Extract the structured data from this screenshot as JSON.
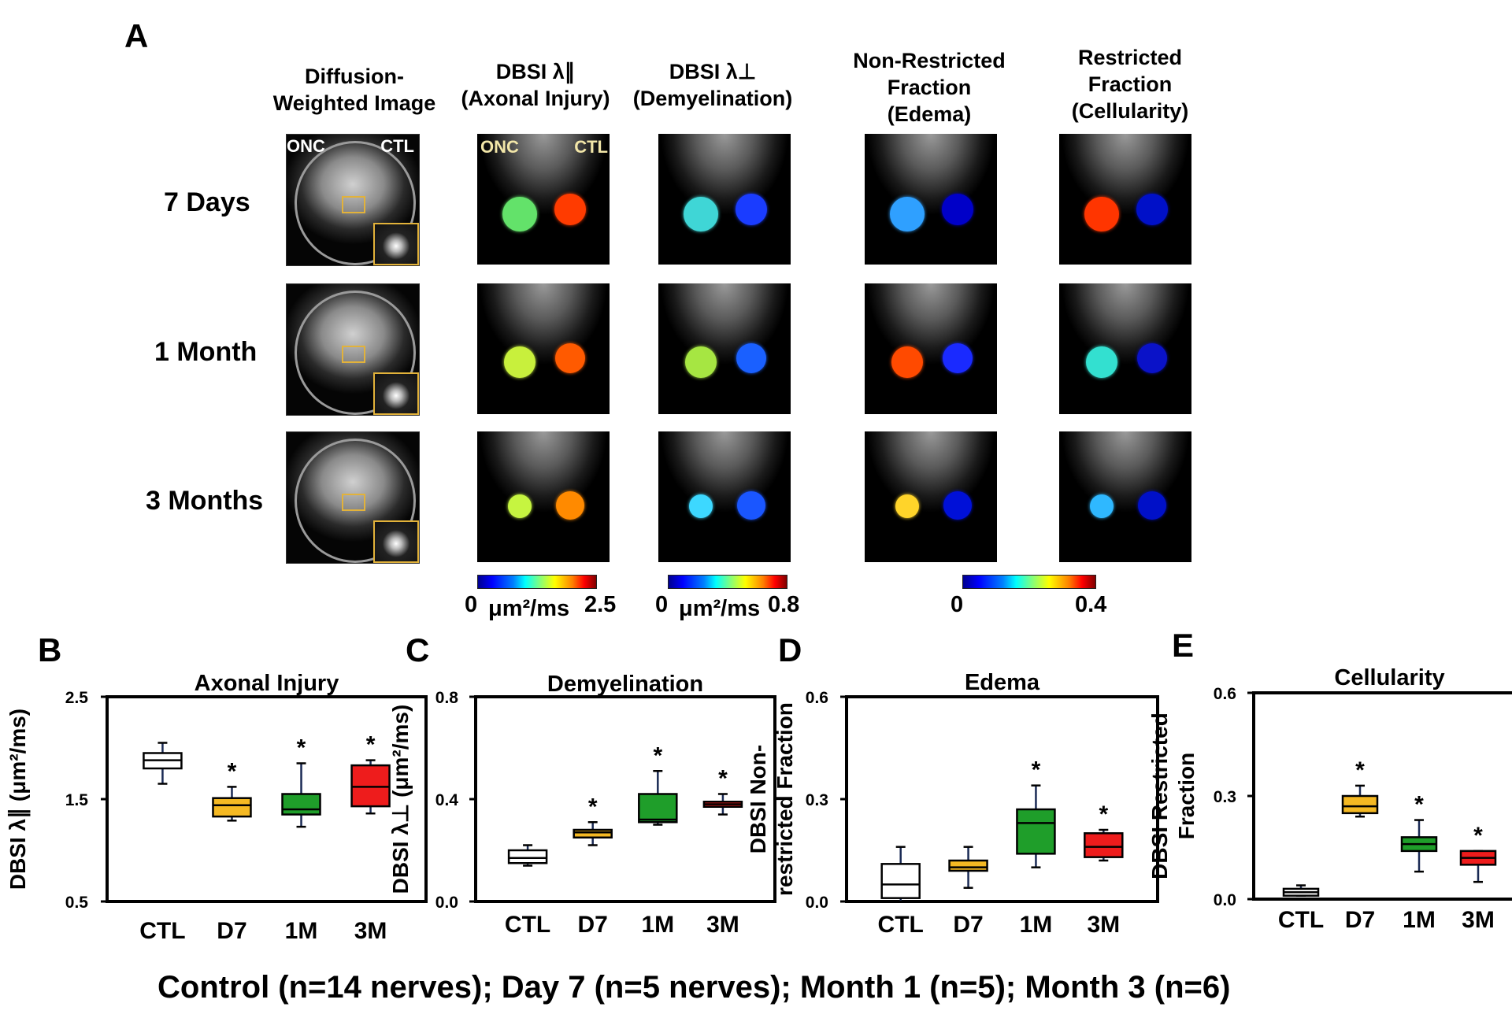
{
  "panel_a": {
    "letter": "A",
    "columns": [
      {
        "line1": "Diffusion-",
        "line2": "Weighted Image"
      },
      {
        "line1": "DBSI λ∥",
        "line2": "(Axonal Injury)"
      },
      {
        "line1": "DBSI λ⊥",
        "line2": "(Demyelination)"
      },
      {
        "line1": "Non-Restricted",
        "line2": "Fraction",
        "line3": "(Edema)"
      },
      {
        "line1": "Restricted",
        "line2": "Fraction",
        "line3": "(Cellularity)"
      }
    ],
    "rows": [
      "7 Days",
      "1 Month",
      "3 Months"
    ],
    "dwi_labels": {
      "left": "ONC",
      "right": "CTL"
    },
    "map_labels": {
      "left": "ONC",
      "right": "CTL"
    },
    "colorbars": [
      {
        "min": "0",
        "unit": "μm²/ms",
        "max": "2.5"
      },
      {
        "min": "0",
        "unit": "μm²/ms",
        "max": "0.8"
      },
      {
        "min": "0",
        "unit": "",
        "max": "0.4"
      }
    ]
  },
  "chart_data": [
    {
      "panel": "B",
      "type": "box",
      "title": "Axonal Injury",
      "ylabel": "DBSI λ∥ (μm²/ms)",
      "ylim": [
        0.5,
        2.5
      ],
      "yticks": [
        "2.5",
        "1.5",
        "0.5"
      ],
      "categories": [
        "CTL",
        "D7",
        "1M",
        "3M"
      ],
      "colors": [
        "#ffffff",
        "#f5b923",
        "#1f9e2a",
        "#ee1c1c"
      ],
      "boxes": [
        {
          "min": 1.65,
          "q1": 1.8,
          "median": 1.88,
          "q3": 1.95,
          "max": 2.05,
          "star": ""
        },
        {
          "min": 1.29,
          "q1": 1.33,
          "median": 1.44,
          "q3": 1.51,
          "max": 1.62,
          "star": "*"
        },
        {
          "min": 1.23,
          "q1": 1.35,
          "median": 1.4,
          "q3": 1.55,
          "max": 1.85,
          "star": "*"
        },
        {
          "min": 1.36,
          "q1": 1.43,
          "median": 1.62,
          "q3": 1.83,
          "max": 1.88,
          "star": "*"
        }
      ]
    },
    {
      "panel": "C",
      "type": "box",
      "title": "Demyelination",
      "ylabel": "DBSI λ⊥ (μm²/ms)",
      "ylim": [
        0.0,
        0.8
      ],
      "yticks": [
        "0.8",
        "0.4",
        "0.0"
      ],
      "categories": [
        "CTL",
        "D7",
        "1M",
        "3M"
      ],
      "colors": [
        "#ffffff",
        "#f5b923",
        "#1f9e2a",
        "#ee1c1c"
      ],
      "boxes": [
        {
          "min": 0.14,
          "q1": 0.15,
          "median": 0.17,
          "q3": 0.2,
          "max": 0.22,
          "star": ""
        },
        {
          "min": 0.22,
          "q1": 0.25,
          "median": 0.27,
          "q3": 0.28,
          "max": 0.31,
          "star": "*"
        },
        {
          "min": 0.3,
          "q1": 0.31,
          "median": 0.32,
          "q3": 0.42,
          "max": 0.51,
          "star": "*"
        },
        {
          "min": 0.34,
          "q1": 0.37,
          "median": 0.38,
          "q3": 0.39,
          "max": 0.42,
          "star": "*"
        }
      ]
    },
    {
      "panel": "D",
      "type": "box",
      "title": "Edema",
      "ylabel": "DBSI Non-restricted Fraction",
      "ylim": [
        0.0,
        0.6
      ],
      "yticks": [
        "0.6",
        "0.3",
        "0.0"
      ],
      "categories": [
        "CTL",
        "D7",
        "1M",
        "3M"
      ],
      "colors": [
        "#ffffff",
        "#f5b923",
        "#1f9e2a",
        "#ee1c1c"
      ],
      "boxes": [
        {
          "min": 0.0,
          "q1": 0.01,
          "median": 0.05,
          "q3": 0.11,
          "max": 0.16,
          "star": ""
        },
        {
          "min": 0.04,
          "q1": 0.09,
          "median": 0.1,
          "q3": 0.12,
          "max": 0.16,
          "star": ""
        },
        {
          "min": 0.1,
          "q1": 0.14,
          "median": 0.23,
          "q3": 0.27,
          "max": 0.34,
          "star": "*"
        },
        {
          "min": 0.12,
          "q1": 0.13,
          "median": 0.16,
          "q3": 0.2,
          "max": 0.21,
          "star": "*"
        }
      ]
    },
    {
      "panel": "E",
      "type": "box",
      "title": "Cellularity",
      "ylabel": "DBSI Restricted Fraction",
      "ylim": [
        0.0,
        0.6
      ],
      "yticks": [
        "0.6",
        "0.3",
        "0.0"
      ],
      "categories": [
        "CTL",
        "D7",
        "1M",
        "3M"
      ],
      "colors": [
        "#ffffff",
        "#f5b923",
        "#1f9e2a",
        "#ee1c1c"
      ],
      "boxes": [
        {
          "min": 0.01,
          "q1": 0.01,
          "median": 0.02,
          "q3": 0.03,
          "max": 0.04,
          "star": ""
        },
        {
          "min": 0.24,
          "q1": 0.25,
          "median": 0.27,
          "q3": 0.3,
          "max": 0.33,
          "star": "*"
        },
        {
          "min": 0.08,
          "q1": 0.14,
          "median": 0.16,
          "q3": 0.18,
          "max": 0.23,
          "star": "*"
        },
        {
          "min": 0.05,
          "q1": 0.1,
          "median": 0.12,
          "q3": 0.14,
          "max": 0.14,
          "star": "*"
        }
      ]
    }
  ],
  "caption": "Control (n=14 nerves); Day 7 (n=5 nerves); Month 1 (n=5); Month 3 (n=6)"
}
